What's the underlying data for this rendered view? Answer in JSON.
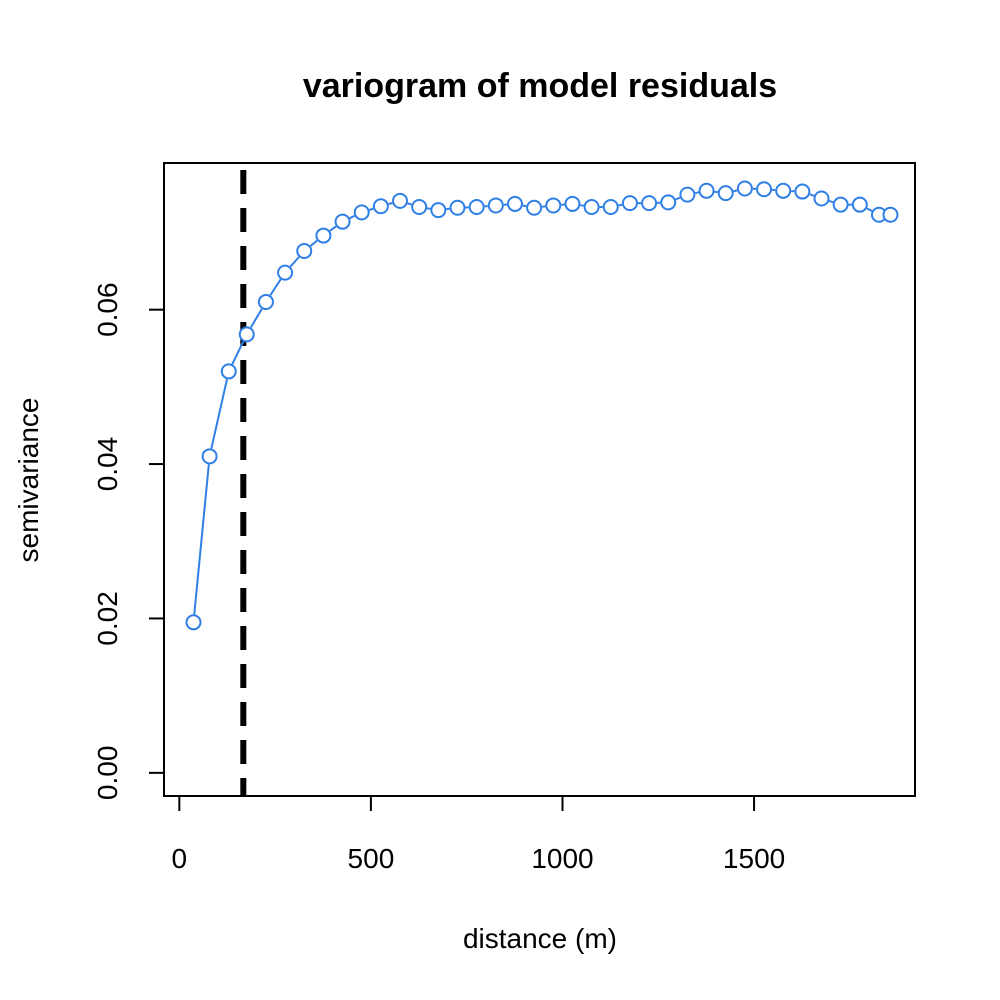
{
  "chart_data": {
    "type": "line",
    "title": "variogram of model residuals",
    "xlabel": "distance (m)",
    "ylabel": "semivariance",
    "xlim": [
      -40,
      1920
    ],
    "ylim": [
      -0.003,
      0.079
    ],
    "xticks": [
      0,
      500,
      1000,
      1500
    ],
    "xtick_labels": [
      "0",
      "500",
      "1000",
      "1500"
    ],
    "yticks": [
      0.0,
      0.02,
      0.04,
      0.06
    ],
    "ytick_labels": [
      "0.00",
      "0.02",
      "0.04",
      "0.06"
    ],
    "grid": false,
    "series_color": "#2f7fe6",
    "reference_line": {
      "x": 167,
      "style": "dashed",
      "color": "#000000"
    },
    "series": [
      {
        "x": [
          37,
          79,
          129,
          176,
          226,
          276,
          326,
          376,
          426,
          476,
          526,
          576,
          626,
          676,
          726,
          776,
          826,
          876,
          926,
          976,
          1026,
          1076,
          1126,
          1176,
          1226,
          1276,
          1326,
          1376,
          1426,
          1476,
          1526,
          1576,
          1626,
          1676,
          1726,
          1776,
          1826,
          1856
        ],
        "y": [
          0.0195,
          0.041,
          0.052,
          0.0568,
          0.061,
          0.0648,
          0.0676,
          0.0696,
          0.0714,
          0.0726,
          0.0734,
          0.0741,
          0.0733,
          0.0729,
          0.0732,
          0.0733,
          0.0735,
          0.0737,
          0.0732,
          0.0735,
          0.0737,
          0.0733,
          0.0733,
          0.0738,
          0.0738,
          0.0739,
          0.0749,
          0.0754,
          0.0751,
          0.0757,
          0.0756,
          0.0754,
          0.0753,
          0.0744,
          0.0736,
          0.0736,
          0.0723,
          0.0723
        ]
      }
    ]
  }
}
